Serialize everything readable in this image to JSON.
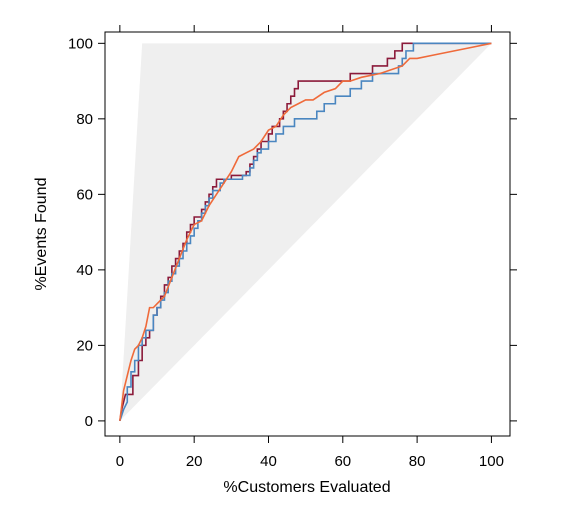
{
  "chart_data": {
    "type": "line",
    "title": "",
    "xlabel": "%Customers Evaluated",
    "ylabel": "%Events Found",
    "xlim": [
      -4,
      105
    ],
    "ylim": [
      -4,
      103
    ],
    "x_ticks": [
      "0",
      "20",
      "40",
      "60",
      "80",
      "100"
    ],
    "y_ticks": [
      "0",
      "20",
      "40",
      "60",
      "80",
      "100"
    ],
    "grid": false,
    "legend": "none",
    "reference_region": {
      "description": "shaded area between the perfect-model curve and the random diagonal",
      "color": "#efefef",
      "vertices": [
        [
          0,
          0
        ],
        [
          6,
          100
        ],
        [
          100,
          100
        ]
      ]
    },
    "series": [
      {
        "color": "#8b1a3a",
        "step": true,
        "points": [
          [
            0,
            0
          ],
          [
            0.5,
            3
          ],
          [
            1,
            5
          ],
          [
            1.5,
            7
          ],
          [
            3.5,
            7
          ],
          [
            3.5,
            12
          ],
          [
            5,
            12
          ],
          [
            5,
            16
          ],
          [
            6,
            16
          ],
          [
            6,
            20
          ],
          [
            7,
            20
          ],
          [
            7,
            22
          ],
          [
            8,
            22
          ],
          [
            8,
            24
          ],
          [
            9,
            24
          ],
          [
            9,
            28
          ],
          [
            10,
            28
          ],
          [
            10,
            30
          ],
          [
            11,
            30
          ],
          [
            11,
            33
          ],
          [
            12,
            33
          ],
          [
            12,
            36
          ],
          [
            13,
            36
          ],
          [
            13,
            38
          ],
          [
            14,
            38
          ],
          [
            14,
            41
          ],
          [
            15,
            41
          ],
          [
            15,
            43
          ],
          [
            16,
            43
          ],
          [
            16,
            45
          ],
          [
            17,
            45
          ],
          [
            17,
            47
          ],
          [
            18,
            47
          ],
          [
            18,
            50
          ],
          [
            19,
            50
          ],
          [
            19,
            52
          ],
          [
            20,
            52
          ],
          [
            20,
            54
          ],
          [
            22,
            54
          ],
          [
            22,
            56
          ],
          [
            23,
            56
          ],
          [
            23,
            58
          ],
          [
            24,
            58
          ],
          [
            24,
            60
          ],
          [
            25,
            60
          ],
          [
            25,
            62
          ],
          [
            26,
            62
          ],
          [
            26,
            64
          ],
          [
            30,
            64
          ],
          [
            30,
            65
          ],
          [
            34,
            65
          ],
          [
            34,
            66
          ],
          [
            35,
            66
          ],
          [
            35,
            68
          ],
          [
            36,
            68
          ],
          [
            36,
            70
          ],
          [
            37,
            70
          ],
          [
            37,
            72
          ],
          [
            38,
            72
          ],
          [
            38,
            74
          ],
          [
            40,
            74
          ],
          [
            40,
            76
          ],
          [
            41,
            76
          ],
          [
            41,
            78
          ],
          [
            43,
            78
          ],
          [
            43,
            80
          ],
          [
            44,
            80
          ],
          [
            44,
            82
          ],
          [
            45,
            82
          ],
          [
            45,
            84
          ],
          [
            46,
            84
          ],
          [
            46,
            86
          ],
          [
            47,
            86
          ],
          [
            47,
            88
          ],
          [
            48,
            88
          ],
          [
            48,
            90
          ],
          [
            62,
            90
          ],
          [
            62,
            92
          ],
          [
            68,
            92
          ],
          [
            68,
            94
          ],
          [
            72,
            94
          ],
          [
            72,
            96
          ],
          [
            74,
            96
          ],
          [
            74,
            98
          ],
          [
            76,
            98
          ],
          [
            76,
            100
          ],
          [
            100,
            100
          ]
        ]
      },
      {
        "color": "#4a86c0",
        "step": true,
        "points": [
          [
            0,
            0
          ],
          [
            1,
            3
          ],
          [
            2,
            5
          ],
          [
            2,
            9
          ],
          [
            3,
            9
          ],
          [
            3,
            13
          ],
          [
            4,
            13
          ],
          [
            4,
            16
          ],
          [
            5,
            16
          ],
          [
            5,
            20
          ],
          [
            6,
            20
          ],
          [
            6,
            22
          ],
          [
            7,
            22
          ],
          [
            7,
            24
          ],
          [
            9,
            24
          ],
          [
            9,
            28
          ],
          [
            10,
            28
          ],
          [
            10,
            30
          ],
          [
            11,
            30
          ],
          [
            11,
            32
          ],
          [
            12,
            32
          ],
          [
            12,
            34
          ],
          [
            13,
            34
          ],
          [
            13,
            37
          ],
          [
            14,
            37
          ],
          [
            14,
            39
          ],
          [
            15,
            39
          ],
          [
            15,
            41
          ],
          [
            16,
            41
          ],
          [
            16,
            43
          ],
          [
            17,
            43
          ],
          [
            17,
            45
          ],
          [
            18,
            45
          ],
          [
            18,
            47
          ],
          [
            19,
            47
          ],
          [
            19,
            49
          ],
          [
            20,
            49
          ],
          [
            20,
            51
          ],
          [
            21,
            51
          ],
          [
            21,
            53
          ],
          [
            22,
            53
          ],
          [
            22,
            55
          ],
          [
            23,
            55
          ],
          [
            23,
            57
          ],
          [
            24,
            57
          ],
          [
            24,
            59
          ],
          [
            25,
            59
          ],
          [
            25,
            61
          ],
          [
            27,
            61
          ],
          [
            27,
            63
          ],
          [
            28,
            63
          ],
          [
            28,
            64
          ],
          [
            33,
            64
          ],
          [
            33,
            65
          ],
          [
            35,
            65
          ],
          [
            35,
            67
          ],
          [
            36,
            67
          ],
          [
            36,
            69
          ],
          [
            37,
            69
          ],
          [
            37,
            71
          ],
          [
            38,
            71
          ],
          [
            38,
            72
          ],
          [
            40,
            72
          ],
          [
            40,
            74
          ],
          [
            42,
            74
          ],
          [
            42,
            76
          ],
          [
            44,
            76
          ],
          [
            44,
            78
          ],
          [
            47,
            78
          ],
          [
            47,
            80
          ],
          [
            53,
            80
          ],
          [
            53,
            82
          ],
          [
            55,
            82
          ],
          [
            55,
            84
          ],
          [
            58,
            84
          ],
          [
            58,
            86
          ],
          [
            62,
            86
          ],
          [
            62,
            88
          ],
          [
            65,
            88
          ],
          [
            65,
            90
          ],
          [
            68,
            90
          ],
          [
            68,
            92
          ],
          [
            75,
            92
          ],
          [
            75,
            94
          ],
          [
            76,
            94
          ],
          [
            76,
            96
          ],
          [
            77,
            96
          ],
          [
            77,
            98
          ],
          [
            79,
            98
          ],
          [
            79,
            100
          ],
          [
            100,
            100
          ]
        ]
      },
      {
        "color": "#ef6a3a",
        "step": false,
        "points": [
          [
            0,
            0
          ],
          [
            0.5,
            4
          ],
          [
            1,
            8
          ],
          [
            2,
            12
          ],
          [
            3,
            16
          ],
          [
            4,
            19
          ],
          [
            5,
            20
          ],
          [
            6,
            22
          ],
          [
            7,
            25
          ],
          [
            8,
            30
          ],
          [
            9,
            30
          ],
          [
            10,
            31
          ],
          [
            11,
            32
          ],
          [
            12,
            33
          ],
          [
            14,
            38
          ],
          [
            16,
            43
          ],
          [
            18,
            48
          ],
          [
            20,
            52
          ],
          [
            22,
            53
          ],
          [
            24,
            57
          ],
          [
            26,
            60
          ],
          [
            28,
            63
          ],
          [
            30,
            66
          ],
          [
            32,
            70
          ],
          [
            34,
            71
          ],
          [
            36,
            72
          ],
          [
            38,
            74
          ],
          [
            40,
            77
          ],
          [
            42,
            78
          ],
          [
            44,
            81
          ],
          [
            46,
            83
          ],
          [
            48,
            84
          ],
          [
            50,
            85
          ],
          [
            52,
            85
          ],
          [
            55,
            87
          ],
          [
            58,
            88
          ],
          [
            60,
            90
          ],
          [
            62,
            90
          ],
          [
            65,
            91
          ],
          [
            70,
            92
          ],
          [
            73,
            93
          ],
          [
            76,
            94
          ],
          [
            78,
            96
          ],
          [
            80,
            96
          ],
          [
            85,
            97
          ],
          [
            90,
            98
          ],
          [
            95,
            99
          ],
          [
            100,
            100
          ]
        ]
      }
    ]
  }
}
